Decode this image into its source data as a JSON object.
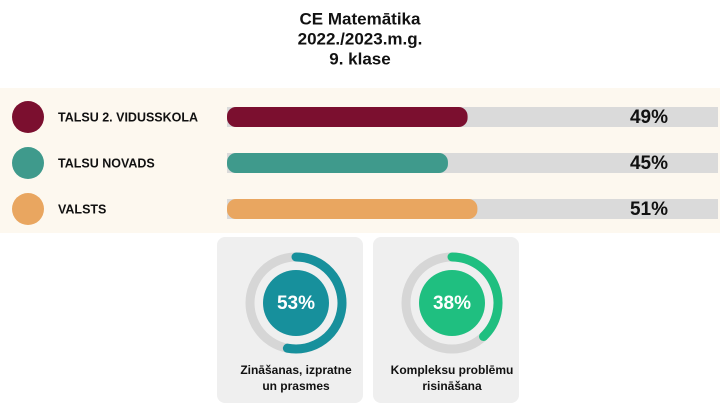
{
  "chart_data": [
    {
      "type": "bar",
      "title": [
        "CE Matemātika",
        "2022./2023.m.g.",
        "9. klase"
      ],
      "categories": [
        "TALSU 2. VIDUSSKOLA",
        "TALSU NOVADS",
        "VALSTS"
      ],
      "values": [
        49,
        45,
        51
      ],
      "value_labels": [
        "49%",
        "45%",
        "51%"
      ],
      "colors": [
        "#7b0f2f",
        "#3f9a8c",
        "#e9a660"
      ],
      "xlim": [
        0,
        100
      ]
    },
    {
      "type": "donut",
      "label": [
        "Zināšanas, izpratne",
        "un prasmes"
      ],
      "values": [
        53
      ],
      "value_labels": [
        "53%"
      ],
      "color": "#17909c",
      "lim": [
        0,
        100
      ]
    },
    {
      "type": "donut",
      "label": [
        "Kompleksu problēmu",
        "risināšana"
      ],
      "values": [
        38
      ],
      "value_labels": [
        "38%"
      ],
      "color": "#1fbf80",
      "lim": [
        0,
        100
      ]
    }
  ]
}
